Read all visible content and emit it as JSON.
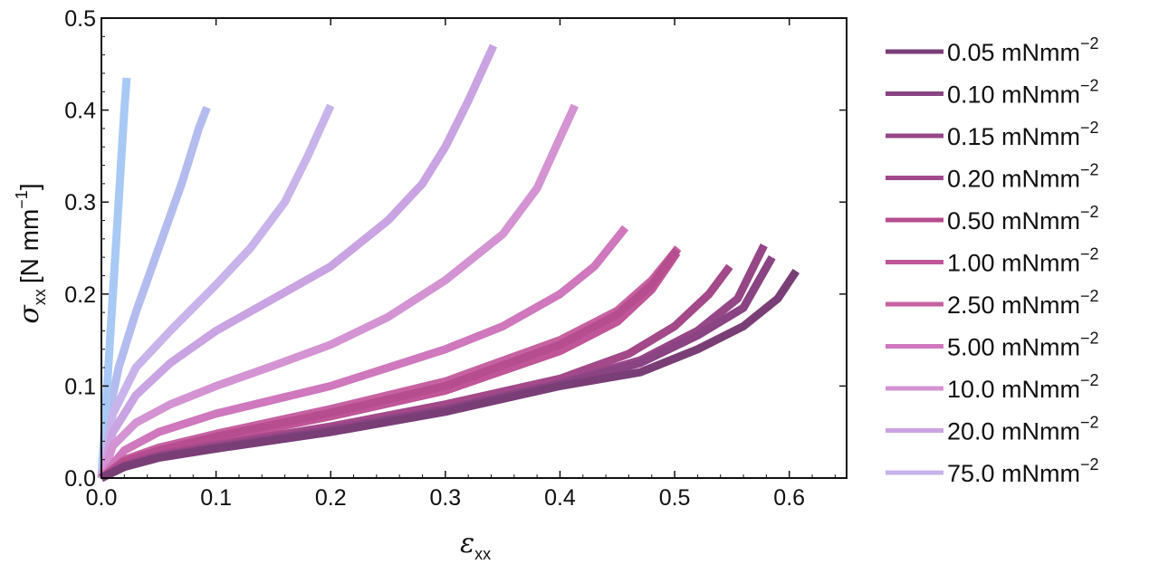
{
  "chart_data": {
    "type": "line",
    "xlabel": "ε",
    "xlabel_sub": "xx",
    "ylabel": "σ",
    "ylabel_sub": "xx",
    "ylabel_unit": "[N mm",
    "ylabel_unit_sup": "−1",
    "ylabel_unit_end": "]",
    "xlim": [
      0.0,
      0.65
    ],
    "ylim": [
      0.0,
      0.5
    ],
    "xticks": [
      "0.0",
      "0.1",
      "0.2",
      "0.3",
      "0.4",
      "0.5",
      "0.6"
    ],
    "yticks": [
      "0.0",
      "0.1",
      "0.2",
      "0.3",
      "0.4",
      "0.5"
    ],
    "grid": false,
    "legend_position": "right",
    "series": [
      {
        "name": "0.05 mNmm",
        "sup": "−2",
        "color": "#7a3e77",
        "x": [
          0,
          0.02,
          0.05,
          0.1,
          0.2,
          0.3,
          0.4,
          0.47,
          0.52,
          0.56,
          0.59,
          0.606
        ],
        "y": [
          0,
          0.012,
          0.022,
          0.032,
          0.05,
          0.072,
          0.1,
          0.115,
          0.14,
          0.165,
          0.195,
          0.225
        ]
      },
      {
        "name": "0.10 mNmm",
        "sup": "−2",
        "color": "#8a4383",
        "x": [
          0,
          0.02,
          0.05,
          0.1,
          0.2,
          0.3,
          0.4,
          0.47,
          0.52,
          0.56,
          0.585
        ],
        "y": [
          0,
          0.013,
          0.023,
          0.033,
          0.052,
          0.074,
          0.102,
          0.125,
          0.155,
          0.185,
          0.24
        ]
      },
      {
        "name": "0.15 mNmm",
        "sup": "−2",
        "color": "#964787",
        "x": [
          0,
          0.02,
          0.05,
          0.1,
          0.2,
          0.3,
          0.4,
          0.47,
          0.52,
          0.555,
          0.578
        ],
        "y": [
          0,
          0.013,
          0.023,
          0.034,
          0.053,
          0.075,
          0.103,
          0.128,
          0.16,
          0.195,
          0.253
        ]
      },
      {
        "name": "0.20 mNmm",
        "sup": "−2",
        "color": "#a3498a",
        "x": [
          0,
          0.02,
          0.05,
          0.1,
          0.2,
          0.3,
          0.4,
          0.46,
          0.5,
          0.53,
          0.548
        ],
        "y": [
          0,
          0.014,
          0.025,
          0.036,
          0.056,
          0.08,
          0.108,
          0.135,
          0.165,
          0.2,
          0.23
        ]
      },
      {
        "name": "0.50 mNmm",
        "sup": "−2",
        "color": "#b64d8e",
        "x": [
          0,
          0.02,
          0.05,
          0.1,
          0.2,
          0.3,
          0.4,
          0.45,
          0.48,
          0.502
        ],
        "y": [
          0,
          0.018,
          0.03,
          0.045,
          0.071,
          0.1,
          0.145,
          0.178,
          0.21,
          0.248
        ]
      },
      {
        "name": "1.00 mNmm",
        "sup": "−2",
        "color": "#c05597",
        "x": [
          0,
          0.02,
          0.05,
          0.1,
          0.2,
          0.3,
          0.4,
          0.45,
          0.48,
          0.502
        ],
        "y": [
          0,
          0.016,
          0.028,
          0.042,
          0.067,
          0.095,
          0.138,
          0.17,
          0.205,
          0.245
        ]
      },
      {
        "name": "2.50 mNmm",
        "sup": "−2",
        "color": "#c762a1",
        "x": [
          0,
          0.02,
          0.05,
          0.1,
          0.2,
          0.3,
          0.4,
          0.45,
          0.48,
          0.503
        ],
        "y": [
          0,
          0.02,
          0.033,
          0.048,
          0.075,
          0.105,
          0.15,
          0.182,
          0.215,
          0.25
        ]
      },
      {
        "name": "5.00 mNmm",
        "sup": "−2",
        "color": "#cf78bd",
        "x": [
          0,
          0.02,
          0.05,
          0.1,
          0.2,
          0.3,
          0.35,
          0.4,
          0.43,
          0.457
        ],
        "y": [
          0,
          0.03,
          0.05,
          0.07,
          0.1,
          0.14,
          0.165,
          0.2,
          0.23,
          0.272
        ]
      },
      {
        "name": "10.0 mNmm",
        "sup": "−2",
        "color": "#d494d3",
        "x": [
          0,
          0.01,
          0.03,
          0.06,
          0.1,
          0.15,
          0.2,
          0.25,
          0.3,
          0.35,
          0.38,
          0.4,
          0.413
        ],
        "y": [
          0,
          0.035,
          0.06,
          0.08,
          0.1,
          0.122,
          0.145,
          0.175,
          0.215,
          0.265,
          0.315,
          0.37,
          0.405
        ]
      },
      {
        "name": "20.0 mNmm",
        "sup": "−2",
        "color": "#c9a3e2",
        "x": [
          0,
          0.01,
          0.03,
          0.06,
          0.1,
          0.15,
          0.2,
          0.25,
          0.28,
          0.3,
          0.32,
          0.342
        ],
        "y": [
          0,
          0.05,
          0.09,
          0.125,
          0.16,
          0.195,
          0.23,
          0.28,
          0.32,
          0.36,
          0.41,
          0.47
        ]
      },
      {
        "name": "75.0 mNmm",
        "sup": "−2",
        "color": "#c8b3ea",
        "x": [
          0,
          0.01,
          0.03,
          0.06,
          0.1,
          0.13,
          0.16,
          0.18,
          0.2
        ],
        "y": [
          0,
          0.07,
          0.12,
          0.16,
          0.21,
          0.25,
          0.3,
          0.35,
          0.405
        ]
      }
    ],
    "extra_series": [
      {
        "color": "#b3bcee",
        "x": [
          0,
          0.005,
          0.015,
          0.03,
          0.05,
          0.07,
          0.085,
          0.092
        ],
        "y": [
          0,
          0.06,
          0.12,
          0.18,
          0.25,
          0.32,
          0.38,
          0.403
        ]
      },
      {
        "color": "#a9c9f5",
        "x": [
          0,
          0.005,
          0.01,
          0.015,
          0.02,
          0.022
        ],
        "y": [
          0,
          0.1,
          0.2,
          0.3,
          0.4,
          0.435
        ]
      }
    ]
  }
}
